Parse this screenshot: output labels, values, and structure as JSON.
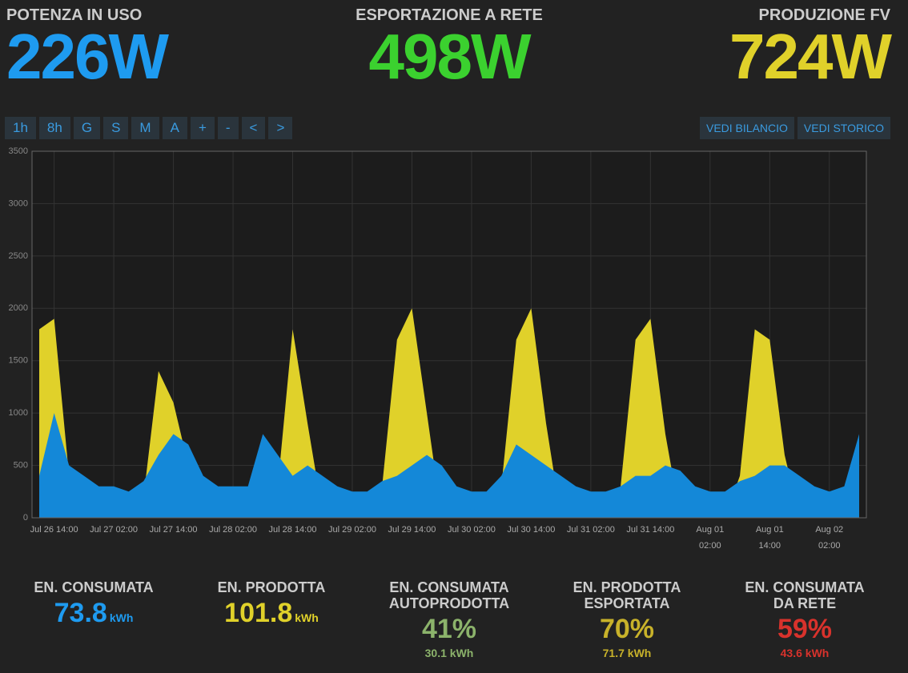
{
  "header": {
    "stats": [
      {
        "label": "POTENZA IN USO",
        "value": "226W",
        "color": "#1e9bf0"
      },
      {
        "label": "ESPORTAZIONE A RETE",
        "value": "498W",
        "color": "#3bd12f"
      },
      {
        "label": "PRODUZIONE FV",
        "value": "724W",
        "color": "#e0d12a"
      }
    ]
  },
  "controls": {
    "range_buttons": [
      "1h",
      "8h",
      "G",
      "S",
      "M",
      "A",
      "+",
      "-",
      "<",
      ">"
    ],
    "view_buttons": [
      "VEDI BILANCIO",
      "VEDI STORICO"
    ]
  },
  "chart_data": {
    "type": "area",
    "categories": [
      null,
      "Jul 26 14:00",
      null,
      null,
      null,
      "Jul 27 02:00",
      null,
      null,
      null,
      "Jul 27 14:00",
      null,
      null,
      null,
      "Jul 28 02:00",
      null,
      null,
      null,
      "Jul 28 14:00",
      null,
      null,
      null,
      "Jul 29 02:00",
      null,
      null,
      null,
      "Jul 29 14:00",
      null,
      null,
      null,
      "Jul 30 02:00",
      null,
      null,
      null,
      "Jul 30 14:00",
      null,
      null,
      null,
      "Jul 31 02:00",
      null,
      null,
      null,
      "Jul 31 14:00",
      null,
      null,
      null,
      "Aug 01\n02:00",
      null,
      null,
      null,
      "Aug 01\n14:00",
      null,
      null,
      null,
      "Aug 02\n02:00",
      null,
      null
    ],
    "series": [
      {
        "color": "#e0d12a",
        "values": [
          1800,
          1900,
          400,
          0,
          0,
          0,
          0,
          200,
          1400,
          1100,
          500,
          0,
          0,
          0,
          0,
          0,
          300,
          1800,
          900,
          50,
          0,
          0,
          0,
          300,
          1700,
          2000,
          1000,
          0,
          0,
          0,
          0,
          300,
          1700,
          2000,
          900,
          0,
          0,
          0,
          0,
          300,
          1700,
          1900,
          800,
          0,
          0,
          0,
          0,
          400,
          1800,
          1700,
          600,
          0,
          0,
          0,
          0,
          500
        ]
      },
      {
        "color": "#1488d8",
        "values": [
          400,
          1000,
          500,
          400,
          300,
          300,
          250,
          350,
          600,
          800,
          700,
          400,
          300,
          300,
          300,
          800,
          600,
          400,
          500,
          400,
          300,
          250,
          250,
          350,
          400,
          500,
          600,
          500,
          300,
          250,
          250,
          400,
          700,
          600,
          500,
          400,
          300,
          250,
          250,
          300,
          400,
          400,
          500,
          450,
          300,
          250,
          250,
          350,
          400,
          500,
          500,
          400,
          300,
          250,
          300,
          800
        ]
      }
    ],
    "ylim": [
      0,
      3500
    ],
    "yticks": [
      0,
      500,
      1000,
      1500,
      2000,
      2500,
      3000,
      3500
    ],
    "grid": true
  },
  "summary": [
    {
      "label": "EN. CONSUMATA",
      "value": "73.8",
      "unit": "kWh",
      "color": "#1e9bf0"
    },
    {
      "label": "EN. PRODOTTA",
      "value": "101.8",
      "unit": "kWh",
      "color": "#e0d12a"
    },
    {
      "label": "EN. CONSUMATA\nAUTOPRODOTTA",
      "value": "41%",
      "sub": "30.1 kWh",
      "color": "#8cb36b"
    },
    {
      "label": "EN. PRODOTTA\nESPORTATA",
      "value": "70%",
      "sub": "71.7 kWh",
      "color": "#c8b22a"
    },
    {
      "label": "EN. CONSUMATA\nDA RETE",
      "value": "59%",
      "sub": "43.6 kWh",
      "color": "#d8322c"
    }
  ]
}
